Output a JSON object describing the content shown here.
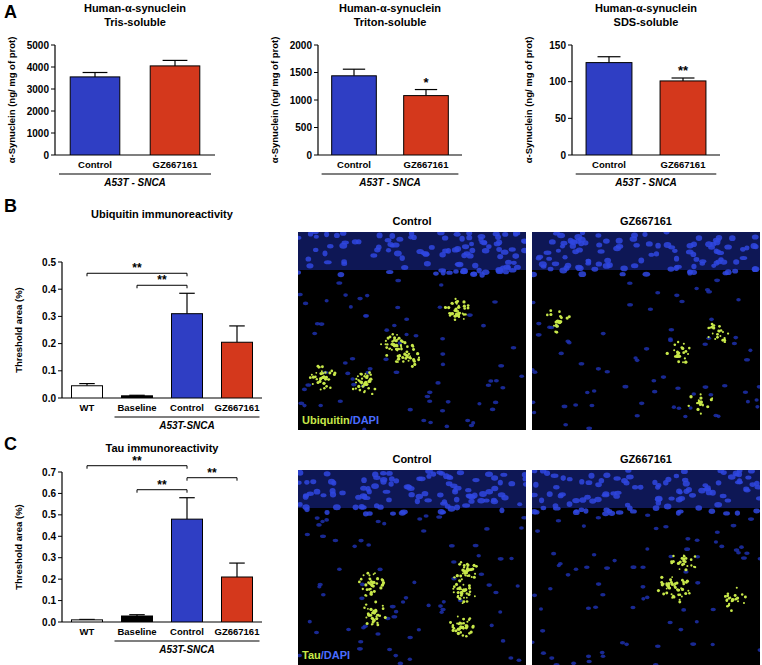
{
  "chart_data": [
    {
      "type": "bar",
      "title": "Human-α-synuclein",
      "subtitle": "Tris-soluble",
      "y_label": "α-Synuclein (ng/ mg of prot)",
      "categories": [
        "Control",
        "GZ667161"
      ],
      "values": [
        3550,
        4050
      ],
      "errors": [
        200,
        250
      ],
      "colors": [
        "#2f3ec4",
        "#d4381c"
      ],
      "ylim": [
        0,
        5000
      ],
      "yticks": [
        0,
        1000,
        2000,
        3000,
        4000,
        5000
      ],
      "group_label": "A53T - SNCA",
      "group_span": [
        0,
        1
      ],
      "significance": []
    },
    {
      "type": "bar",
      "title": "Human-α-synuclein",
      "subtitle": "Triton-soluble",
      "y_label": "α-Synuclein (ng/ mg of prot)",
      "categories": [
        "Control",
        "GZ667161"
      ],
      "values": [
        1440,
        1080
      ],
      "errors": [
        120,
        110
      ],
      "colors": [
        "#2f3ec4",
        "#d4381c"
      ],
      "ylim": [
        0,
        2000
      ],
      "yticks": [
        0,
        500,
        1000,
        1500,
        2000
      ],
      "group_label": "A53T - SNCA",
      "group_span": [
        0,
        1
      ],
      "significance": [
        {
          "at": 1,
          "label": "*"
        }
      ]
    },
    {
      "type": "bar",
      "title": "Human-α-synuclein",
      "subtitle": "SDS-soluble",
      "y_label": "α-Synuclein (ng/ mg of prot)",
      "categories": [
        "Control",
        "GZ667161"
      ],
      "values": [
        126,
        101
      ],
      "errors": [
        8,
        4
      ],
      "colors": [
        "#2f3ec4",
        "#d4381c"
      ],
      "ylim": [
        0,
        150
      ],
      "yticks": [
        0,
        50,
        100,
        150
      ],
      "group_label": "A53T - SNCA",
      "group_span": [
        0,
        1
      ],
      "significance": [
        {
          "at": 1,
          "label": "**"
        }
      ]
    },
    {
      "type": "bar",
      "title": "Ubiquitin immunoreactivity",
      "y_label": "Threshold area (%)",
      "categories": [
        "WT",
        "Baseline",
        "Control",
        "GZ667161"
      ],
      "values": [
        0.045,
        0.008,
        0.31,
        0.205
      ],
      "errors": [
        0.008,
        0.002,
        0.075,
        0.06
      ],
      "colors": [
        "#ffffff",
        "#000000",
        "#2f3ec4",
        "#d4381c"
      ],
      "ylim": [
        0,
        0.5
      ],
      "yticks": [
        {
          "value": 0,
          "label": "0.0"
        },
        0.1,
        0.2,
        0.3,
        0.4,
        0.5
      ],
      "group_label": "A53T-SNCA",
      "group_span": [
        1,
        3
      ],
      "significance": [
        {
          "from": 0,
          "to": 2,
          "label": "**"
        },
        {
          "from": 1,
          "to": 2,
          "label": "**"
        }
      ]
    },
    {
      "type": "bar",
      "title": "Tau immunoreactivity",
      "y_label": "Threshold area (%)",
      "categories": [
        "WT",
        "Baseline",
        "Control",
        "GZ667161"
      ],
      "values": [
        0.01,
        0.028,
        0.48,
        0.21
      ],
      "errors": [
        0.002,
        0.006,
        0.1,
        0.065
      ],
      "colors": [
        "#ffffff",
        "#000000",
        "#2f3ec4",
        "#d4381c"
      ],
      "ylim": [
        0,
        0.7
      ],
      "yticks": [
        {
          "value": 0,
          "label": "0.0"
        },
        0.1,
        0.2,
        0.3,
        0.4,
        0.5,
        0.6,
        0.7
      ],
      "group_label": "A53T-SNCA",
      "group_span": [
        1,
        3
      ],
      "significance": [
        {
          "from": 0,
          "to": 2,
          "label": "**"
        },
        {
          "from": 1,
          "to": 2,
          "label": "**"
        },
        {
          "from": 2,
          "to": 3,
          "label": "**"
        }
      ]
    }
  ],
  "panel_labels": [
    "A",
    "B",
    "C"
  ],
  "images": [
    {
      "titles": [
        "Control",
        "GZ667161"
      ],
      "stain": [
        "Ubiquitin",
        "/DAPI"
      ]
    },
    {
      "titles": [
        "Control",
        "GZ667161"
      ],
      "stain": [
        "Tau",
        "/DAPI"
      ]
    }
  ]
}
